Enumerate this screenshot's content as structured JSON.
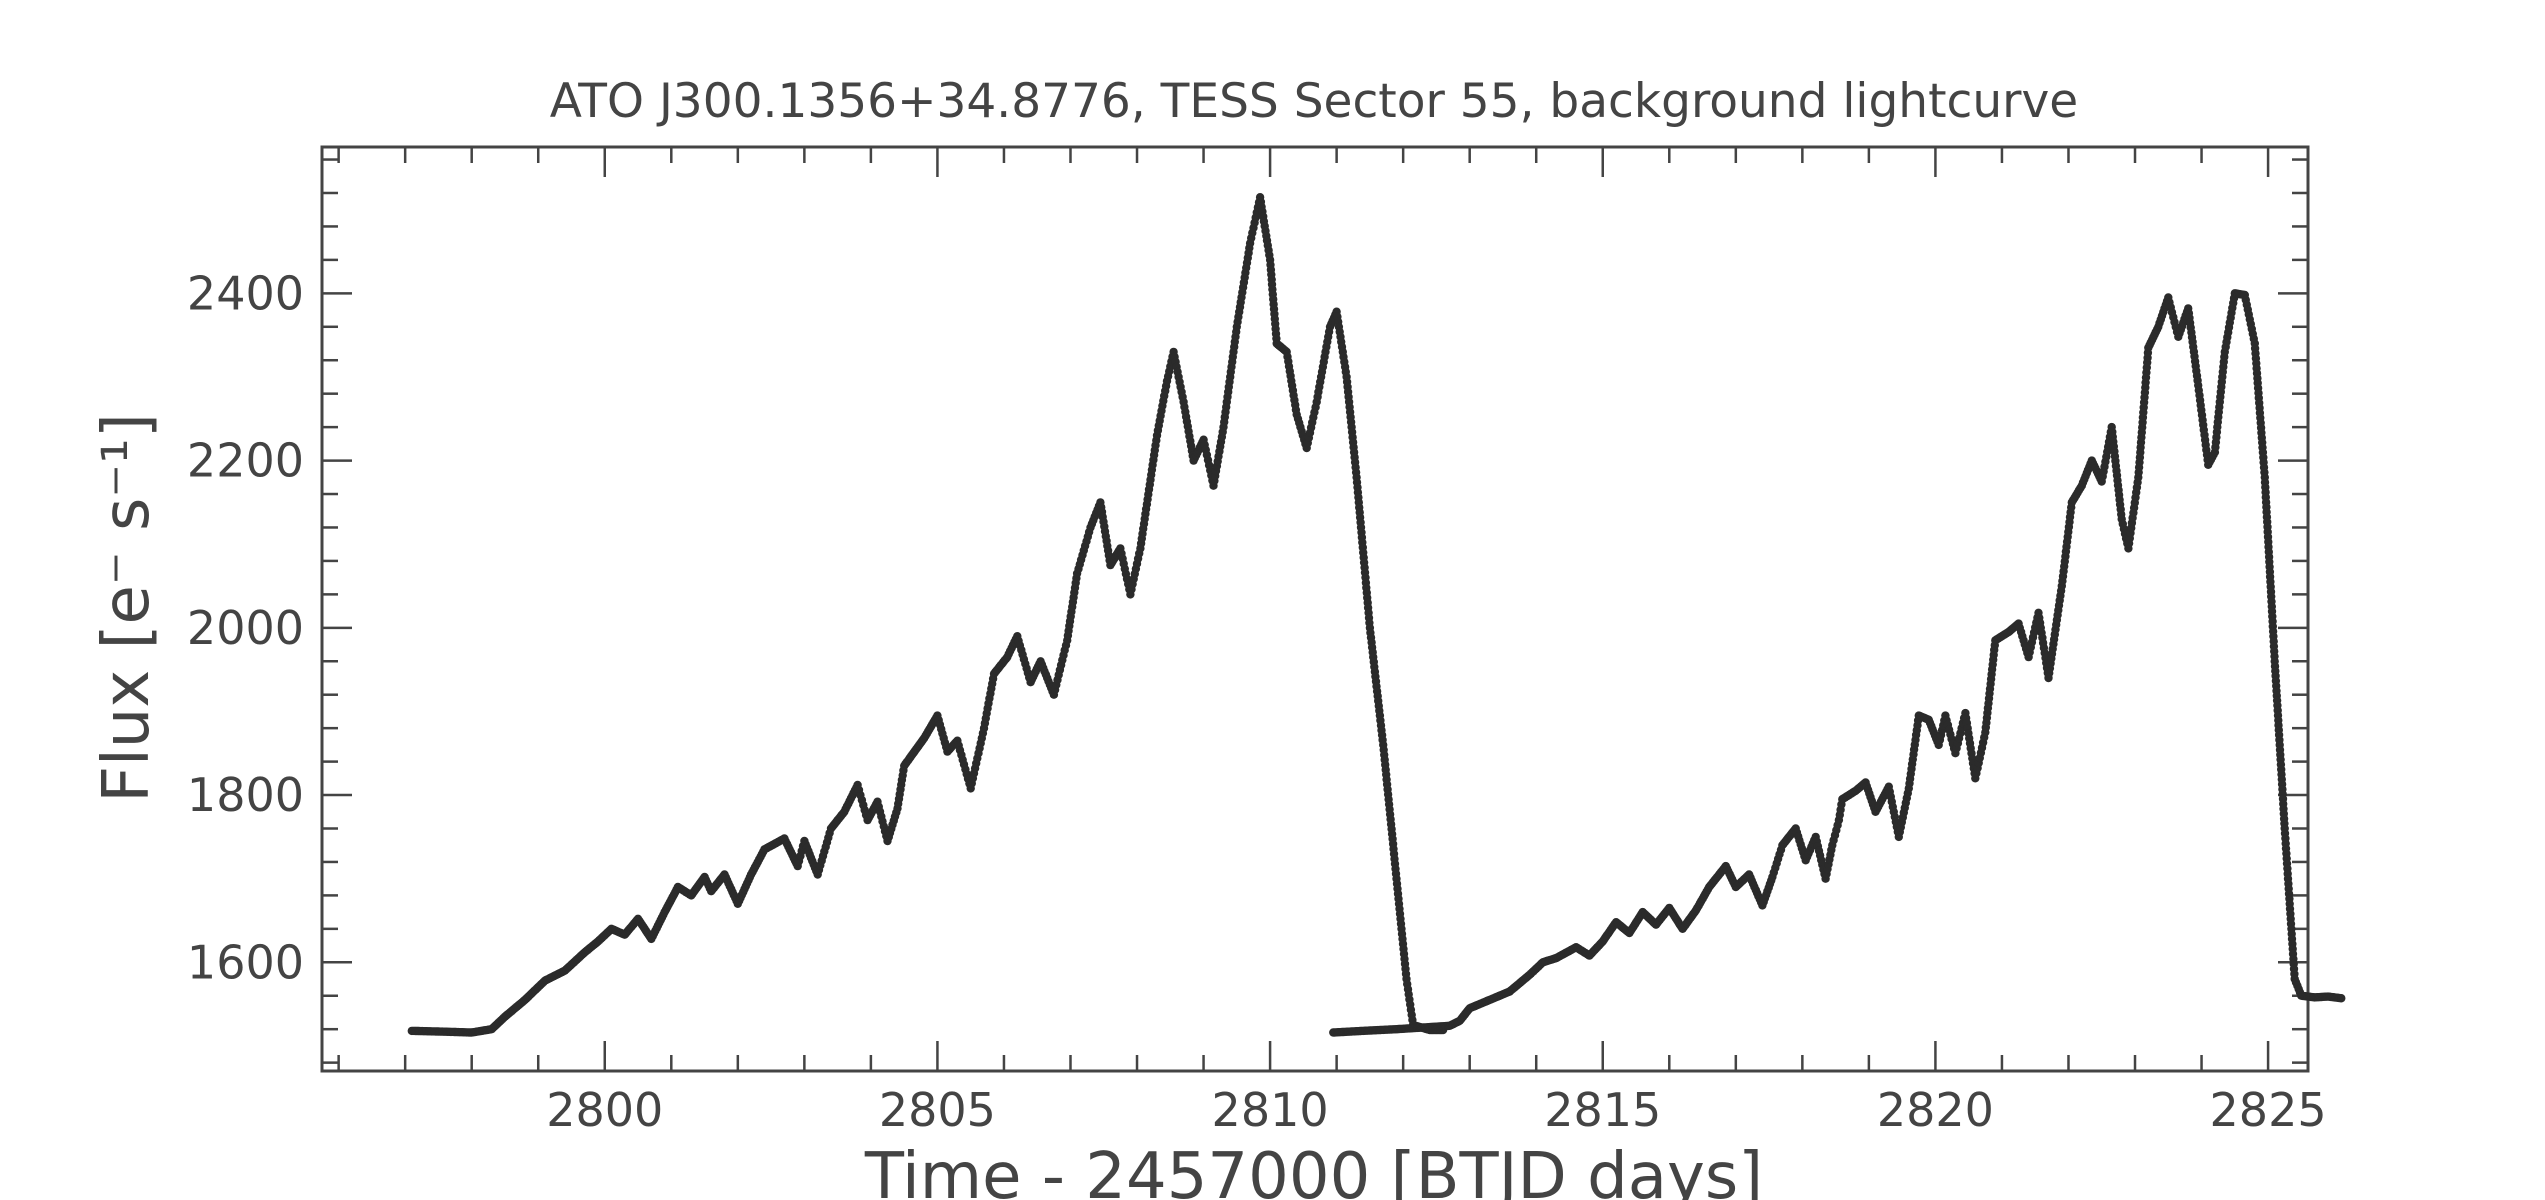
{
  "chart_data": {
    "type": "scatter",
    "title": "ATO J300.1356+34.8776, TESS Sector 55, background lightcurve",
    "xlabel": "Time - 2457000 [BTJD days]",
    "ylabel": "Flux [e⁻ s⁻¹]",
    "xlim": [
      2795.75,
      2825.6
    ],
    "ylim": [
      1470,
      2575
    ],
    "xticks": [
      2800,
      2805,
      2810,
      2815,
      2820,
      2825
    ],
    "xtick_labels": [
      "2800",
      "2805",
      "2810",
      "2815",
      "2820",
      "2825"
    ],
    "yticks": [
      1600,
      1800,
      2000,
      2200,
      2400
    ],
    "ytick_labels": [
      "1600",
      "1800",
      "2000",
      "2200",
      "2400"
    ],
    "grid": false,
    "legend": "none",
    "marker_color": "#2b2b2b",
    "series": [
      {
        "points": [
          [
            2797.1,
            1518
          ],
          [
            2797.6,
            1517
          ],
          [
            2798.0,
            1516
          ],
          [
            2798.3,
            1520
          ],
          [
            2798.5,
            1535
          ],
          [
            2798.8,
            1555
          ],
          [
            2799.1,
            1578
          ],
          [
            2799.4,
            1590
          ],
          [
            2799.7,
            1612
          ],
          [
            2799.9,
            1625
          ],
          [
            2800.1,
            1640
          ],
          [
            2800.3,
            1633
          ],
          [
            2800.5,
            1652
          ],
          [
            2800.7,
            1628
          ],
          [
            2800.9,
            1660
          ],
          [
            2801.1,
            1690
          ],
          [
            2801.3,
            1680
          ],
          [
            2801.5,
            1702
          ],
          [
            2801.6,
            1685
          ],
          [
            2801.8,
            1705
          ],
          [
            2802.0,
            1670
          ],
          [
            2802.2,
            1705
          ],
          [
            2802.4,
            1735
          ],
          [
            2802.7,
            1748
          ],
          [
            2802.9,
            1715
          ],
          [
            2803.0,
            1745
          ],
          [
            2803.2,
            1705
          ],
          [
            2803.4,
            1760
          ],
          [
            2803.6,
            1780
          ],
          [
            2803.8,
            1812
          ],
          [
            2803.95,
            1770
          ],
          [
            2804.1,
            1792
          ],
          [
            2804.25,
            1745
          ],
          [
            2804.4,
            1784
          ],
          [
            2804.5,
            1835
          ],
          [
            2804.8,
            1868
          ],
          [
            2805.0,
            1895
          ],
          [
            2805.15,
            1852
          ],
          [
            2805.3,
            1865
          ],
          [
            2805.5,
            1808
          ],
          [
            2805.7,
            1880
          ],
          [
            2805.85,
            1945
          ],
          [
            2806.05,
            1965
          ],
          [
            2806.2,
            1990
          ],
          [
            2806.4,
            1935
          ],
          [
            2806.55,
            1960
          ],
          [
            2806.75,
            1920
          ],
          [
            2806.95,
            1985
          ],
          [
            2807.1,
            2065
          ],
          [
            2807.3,
            2120
          ],
          [
            2807.45,
            2150
          ],
          [
            2807.6,
            2075
          ],
          [
            2807.75,
            2095
          ],
          [
            2807.9,
            2040
          ],
          [
            2808.05,
            2095
          ],
          [
            2808.3,
            2230
          ],
          [
            2808.45,
            2295
          ],
          [
            2808.55,
            2330
          ],
          [
            2808.7,
            2270
          ],
          [
            2808.85,
            2200
          ],
          [
            2809.0,
            2225
          ],
          [
            2809.15,
            2170
          ],
          [
            2809.3,
            2240
          ],
          [
            2809.5,
            2360
          ],
          [
            2809.7,
            2460
          ],
          [
            2809.85,
            2515
          ],
          [
            2810.0,
            2440
          ],
          [
            2810.1,
            2340
          ],
          [
            2810.25,
            2330
          ],
          [
            2810.4,
            2255
          ],
          [
            2810.55,
            2215
          ],
          [
            2810.7,
            2270
          ],
          [
            2810.9,
            2360
          ],
          [
            2811.0,
            2378
          ],
          [
            2811.15,
            2300
          ],
          [
            2811.3,
            2180
          ],
          [
            2811.5,
            2000
          ],
          [
            2811.7,
            1860
          ],
          [
            2811.9,
            1700
          ],
          [
            2812.05,
            1580
          ],
          [
            2812.15,
            1525
          ],
          [
            2812.4,
            1519
          ],
          [
            2812.6,
            1519
          ]
        ]
      },
      {
        "points": [
          [
            2810.95,
            1516
          ],
          [
            2811.4,
            1518
          ],
          [
            2811.9,
            1520
          ],
          [
            2812.3,
            1522
          ],
          [
            2812.7,
            1524
          ],
          [
            2812.85,
            1530
          ],
          [
            2813.0,
            1545
          ],
          [
            2813.3,
            1555
          ],
          [
            2813.6,
            1565
          ],
          [
            2813.9,
            1585
          ],
          [
            2814.1,
            1600
          ],
          [
            2814.3,
            1605
          ],
          [
            2814.6,
            1618
          ],
          [
            2814.8,
            1608
          ],
          [
            2815.0,
            1625
          ],
          [
            2815.2,
            1648
          ],
          [
            2815.4,
            1635
          ],
          [
            2815.6,
            1660
          ],
          [
            2815.8,
            1645
          ],
          [
            2816.0,
            1665
          ],
          [
            2816.2,
            1640
          ],
          [
            2816.4,
            1662
          ],
          [
            2816.6,
            1690
          ],
          [
            2816.85,
            1715
          ],
          [
            2817.0,
            1690
          ],
          [
            2817.2,
            1705
          ],
          [
            2817.4,
            1668
          ],
          [
            2817.55,
            1702
          ],
          [
            2817.7,
            1740
          ],
          [
            2817.9,
            1760
          ],
          [
            2818.05,
            1722
          ],
          [
            2818.2,
            1750
          ],
          [
            2818.35,
            1700
          ],
          [
            2818.45,
            1740
          ],
          [
            2818.55,
            1770
          ],
          [
            2818.6,
            1795
          ],
          [
            2818.8,
            1805
          ],
          [
            2818.95,
            1815
          ],
          [
            2819.1,
            1780
          ],
          [
            2819.3,
            1810
          ],
          [
            2819.45,
            1750
          ],
          [
            2819.6,
            1808
          ],
          [
            2819.75,
            1895
          ],
          [
            2819.9,
            1890
          ],
          [
            2820.05,
            1860
          ],
          [
            2820.15,
            1895
          ],
          [
            2820.3,
            1850
          ],
          [
            2820.45,
            1898
          ],
          [
            2820.6,
            1820
          ],
          [
            2820.75,
            1875
          ],
          [
            2820.9,
            1985
          ],
          [
            2821.1,
            1995
          ],
          [
            2821.25,
            2005
          ],
          [
            2821.4,
            1965
          ],
          [
            2821.55,
            2018
          ],
          [
            2821.7,
            1940
          ],
          [
            2821.9,
            2050
          ],
          [
            2822.05,
            2150
          ],
          [
            2822.2,
            2170
          ],
          [
            2822.35,
            2200
          ],
          [
            2822.5,
            2175
          ],
          [
            2822.65,
            2240
          ],
          [
            2822.8,
            2130
          ],
          [
            2822.9,
            2095
          ],
          [
            2823.05,
            2180
          ],
          [
            2823.2,
            2335
          ],
          [
            2823.35,
            2360
          ],
          [
            2823.5,
            2395
          ],
          [
            2823.65,
            2348
          ],
          [
            2823.8,
            2382
          ],
          [
            2823.95,
            2290
          ],
          [
            2824.1,
            2195
          ],
          [
            2824.2,
            2210
          ],
          [
            2824.35,
            2330
          ],
          [
            2824.5,
            2400
          ],
          [
            2824.65,
            2398
          ],
          [
            2824.8,
            2340
          ],
          [
            2824.95,
            2180
          ],
          [
            2825.1,
            1960
          ],
          [
            2825.25,
            1760
          ],
          [
            2825.4,
            1580
          ],
          [
            2825.5,
            1560
          ],
          [
            2825.7,
            1558
          ],
          [
            2825.9,
            1559
          ],
          [
            2826.1,
            1557
          ]
        ]
      }
    ]
  }
}
